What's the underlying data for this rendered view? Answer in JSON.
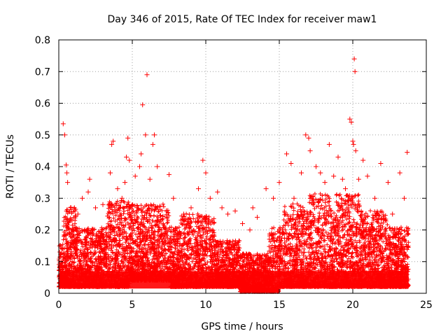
{
  "chart_data": {
    "type": "scatter",
    "title": "Day 346 of 2015, Rate Of TEC Index for receiver maw1",
    "xlabel": "GPS time / hours",
    "ylabel": "ROTI / TECUs",
    "xlim": [
      0,
      25
    ],
    "ylim": [
      0,
      0.8
    ],
    "xticks": [
      0,
      5,
      10,
      15,
      20,
      25
    ],
    "xtick_labels": [
      "0",
      "5",
      "10",
      "15",
      "20",
      "25"
    ],
    "yticks": [
      0,
      0.1,
      0.2,
      0.3,
      0.4,
      0.5,
      0.6,
      0.7,
      0.8
    ],
    "ytick_labels": [
      "0",
      "0.1",
      "0.2",
      "0.3",
      "0.4",
      "0.5",
      "0.6",
      "0.7",
      "0.8"
    ],
    "grid": true,
    "marker": "plus",
    "color": "#ff0000",
    "points": [
      [
        0.3,
        0.535
      ],
      [
        0.4,
        0.5
      ],
      [
        0.5,
        0.405
      ],
      [
        0.55,
        0.38
      ],
      [
        0.6,
        0.35
      ],
      [
        0.8,
        0.27
      ],
      [
        1.1,
        0.26
      ],
      [
        1.3,
        0.25
      ],
      [
        1.6,
        0.3
      ],
      [
        2.0,
        0.32
      ],
      [
        2.1,
        0.36
      ],
      [
        2.5,
        0.27
      ],
      [
        3.0,
        0.28
      ],
      [
        3.5,
        0.38
      ],
      [
        3.6,
        0.47
      ],
      [
        3.7,
        0.48
      ],
      [
        4.0,
        0.33
      ],
      [
        4.3,
        0.3
      ],
      [
        4.5,
        0.35
      ],
      [
        4.6,
        0.43
      ],
      [
        4.7,
        0.49
      ],
      [
        4.8,
        0.42
      ],
      [
        5.2,
        0.37
      ],
      [
        5.5,
        0.4
      ],
      [
        5.6,
        0.44
      ],
      [
        5.7,
        0.595
      ],
      [
        5.9,
        0.5
      ],
      [
        6.0,
        0.69
      ],
      [
        6.2,
        0.36
      ],
      [
        6.4,
        0.47
      ],
      [
        6.5,
        0.5
      ],
      [
        6.7,
        0.4
      ],
      [
        7.5,
        0.375
      ],
      [
        7.8,
        0.3
      ],
      [
        8.5,
        0.25
      ],
      [
        9.0,
        0.27
      ],
      [
        9.5,
        0.33
      ],
      [
        9.8,
        0.42
      ],
      [
        10.0,
        0.38
      ],
      [
        10.3,
        0.3
      ],
      [
        10.8,
        0.32
      ],
      [
        11.1,
        0.27
      ],
      [
        11.5,
        0.25
      ],
      [
        12.0,
        0.26
      ],
      [
        12.5,
        0.22
      ],
      [
        13.0,
        0.2
      ],
      [
        13.2,
        0.27
      ],
      [
        13.5,
        0.24
      ],
      [
        14.1,
        0.33
      ],
      [
        14.6,
        0.3
      ],
      [
        15.0,
        0.35
      ],
      [
        15.5,
        0.44
      ],
      [
        15.8,
        0.41
      ],
      [
        16.0,
        0.3
      ],
      [
        16.5,
        0.38
      ],
      [
        16.8,
        0.5
      ],
      [
        17.0,
        0.49
      ],
      [
        17.1,
        0.45
      ],
      [
        17.5,
        0.4
      ],
      [
        17.8,
        0.38
      ],
      [
        18.1,
        0.35
      ],
      [
        18.4,
        0.47
      ],
      [
        18.7,
        0.37
      ],
      [
        19.0,
        0.43
      ],
      [
        19.3,
        0.36
      ],
      [
        19.5,
        0.33
      ],
      [
        19.8,
        0.55
      ],
      [
        19.9,
        0.54
      ],
      [
        20.0,
        0.48
      ],
      [
        20.05,
        0.47
      ],
      [
        20.1,
        0.74
      ],
      [
        20.15,
        0.7
      ],
      [
        20.2,
        0.45
      ],
      [
        20.4,
        0.36
      ],
      [
        20.7,
        0.42
      ],
      [
        21.0,
        0.37
      ],
      [
        21.5,
        0.3
      ],
      [
        21.9,
        0.41
      ],
      [
        22.4,
        0.35
      ],
      [
        22.7,
        0.25
      ],
      [
        23.2,
        0.38
      ],
      [
        23.5,
        0.3
      ],
      [
        23.7,
        0.445
      ]
    ]
  }
}
